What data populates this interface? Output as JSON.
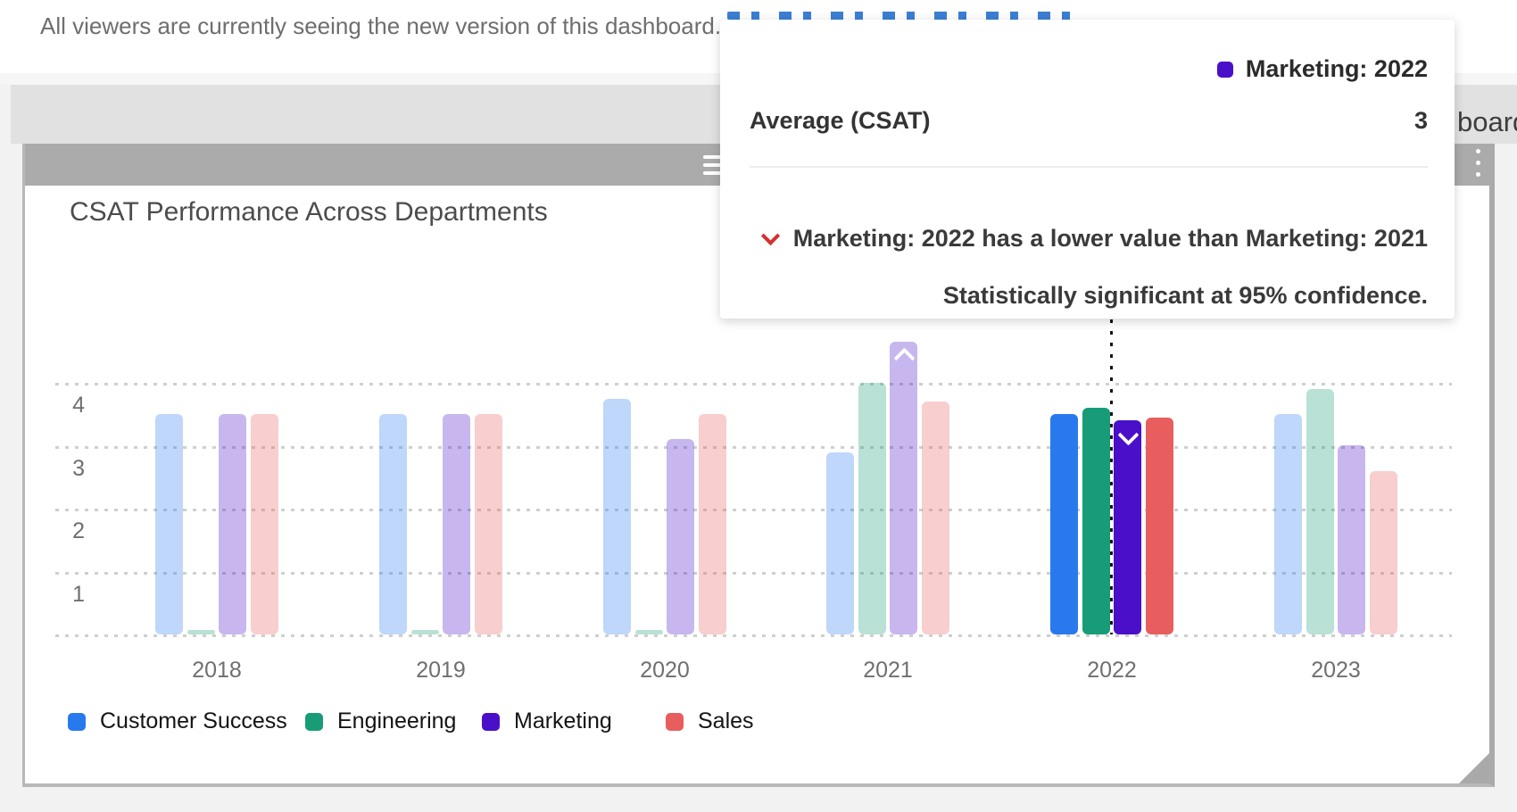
{
  "banner": {
    "text": "All viewers are currently seeing the new version of this dashboard."
  },
  "toolbar": {
    "title_fragment": "board"
  },
  "widget": {
    "title": "CSAT Performance Across Departments"
  },
  "tooltip": {
    "series_label": "Marketing: 2022",
    "series_color": "#4a10c9",
    "metric_label": "Average (CSAT)",
    "metric_value": "3",
    "significance_line1": "Marketing: 2022 has a lower value than Marketing: 2021",
    "significance_line2": "Statistically significant at 95% confidence.",
    "significance_color": "#d43030"
  },
  "chart_data": {
    "type": "bar",
    "title": "CSAT Performance Across Departments",
    "categories": [
      "2018",
      "2019",
      "2020",
      "2021",
      "2022",
      "2023"
    ],
    "series": [
      {
        "name": "Customer Success",
        "color": "#2979ee",
        "values": [
          3.5,
          3.5,
          3.75,
          2.9,
          3.5,
          3.5
        ]
      },
      {
        "name": "Engineering",
        "color": "#179c77",
        "values": [
          0.05,
          0.05,
          0.05,
          4.0,
          3.6,
          3.9
        ]
      },
      {
        "name": "Marketing",
        "color": "#4a10c9",
        "values": [
          3.5,
          3.5,
          3.1,
          4.65,
          3.4,
          3.0
        ]
      },
      {
        "name": "Sales",
        "color": "#e85d5d",
        "values": [
          3.5,
          3.5,
          3.5,
          3.7,
          3.45,
          2.6
        ]
      }
    ],
    "yticks": [
      1,
      2,
      3,
      4
    ],
    "ylim": [
      0,
      4.8
    ],
    "xlabel": "",
    "ylabel": "",
    "grid": "dotted-horizontal",
    "legend_position": "bottom",
    "highlighted_category": "2022",
    "annotations": [
      {
        "category": "2021",
        "series": "Marketing",
        "marker": "chevron-up",
        "meaning": "significantly higher"
      },
      {
        "category": "2022",
        "series": "Marketing",
        "marker": "chevron-down",
        "meaning": "significantly lower"
      }
    ]
  }
}
